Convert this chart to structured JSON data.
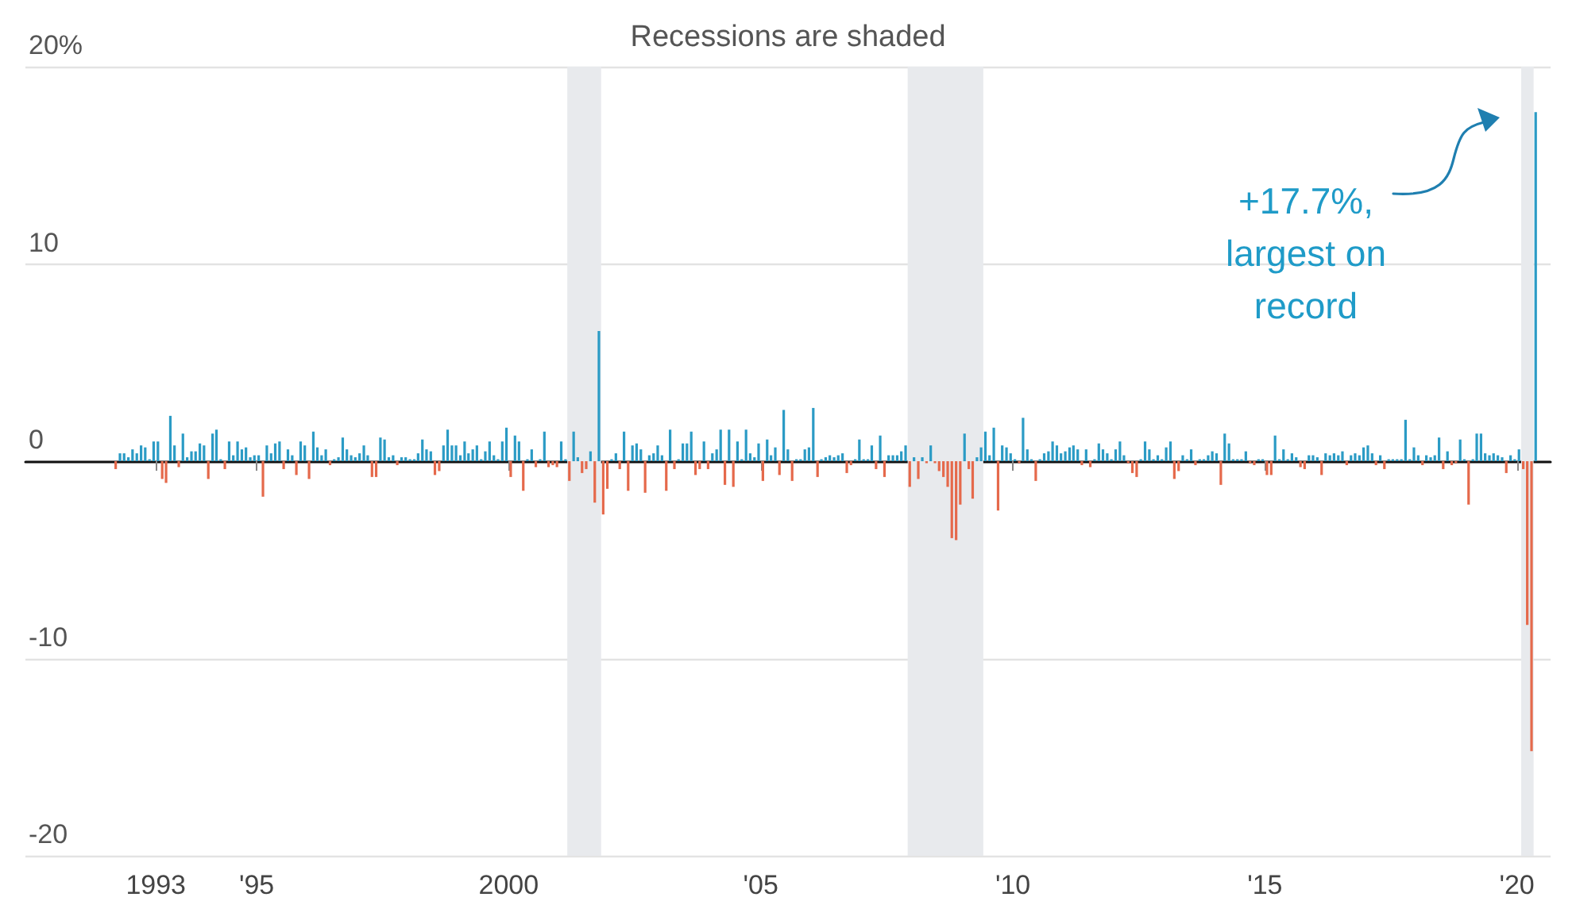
{
  "chart_data": {
    "type": "bar",
    "x": [
      "1992-03",
      "1992-04",
      "1992-05",
      "1992-06",
      "1992-07",
      "1992-08",
      "1992-09",
      "1992-10",
      "1992-11",
      "1992-12",
      "1993-01",
      "1993-02",
      "1993-03",
      "1993-04",
      "1993-05",
      "1993-06",
      "1993-07",
      "1993-08",
      "1993-09",
      "1993-10",
      "1993-11",
      "1993-12",
      "1994-01",
      "1994-02",
      "1994-03",
      "1994-04",
      "1994-05",
      "1994-06",
      "1994-07",
      "1994-08",
      "1994-09",
      "1994-10",
      "1994-11",
      "1994-12",
      "1995-01",
      "1995-02",
      "1995-03",
      "1995-04",
      "1995-05",
      "1995-06",
      "1995-07",
      "1995-08",
      "1995-09",
      "1995-10",
      "1995-11",
      "1995-12",
      "1996-01",
      "1996-02",
      "1996-03",
      "1996-04",
      "1996-05",
      "1996-06",
      "1996-07",
      "1996-08",
      "1996-09",
      "1996-10",
      "1996-11",
      "1996-12",
      "1997-01",
      "1997-02",
      "1997-03",
      "1997-04",
      "1997-05",
      "1997-06",
      "1997-07",
      "1997-08",
      "1997-09",
      "1997-10",
      "1997-11",
      "1997-12",
      "1998-01",
      "1998-02",
      "1998-03",
      "1998-04",
      "1998-05",
      "1998-06",
      "1998-07",
      "1998-08",
      "1998-09",
      "1998-10",
      "1998-11",
      "1998-12",
      "1999-01",
      "1999-02",
      "1999-03",
      "1999-04",
      "1999-05",
      "1999-06",
      "1999-07",
      "1999-08",
      "1999-09",
      "1999-10",
      "1999-11",
      "1999-12",
      "2000-01",
      "2000-02",
      "2000-03",
      "2000-04",
      "2000-05",
      "2000-06",
      "2000-07",
      "2000-08",
      "2000-09",
      "2000-10",
      "2000-11",
      "2000-12",
      "2001-01",
      "2001-02",
      "2001-03",
      "2001-04",
      "2001-05",
      "2001-06",
      "2001-07",
      "2001-08",
      "2001-09",
      "2001-10",
      "2001-11",
      "2001-12",
      "2002-01",
      "2002-02",
      "2002-03",
      "2002-04",
      "2002-05",
      "2002-06",
      "2002-07",
      "2002-08",
      "2002-09",
      "2002-10",
      "2002-11",
      "2002-12",
      "2003-01",
      "2003-02",
      "2003-03",
      "2003-04",
      "2003-05",
      "2003-06",
      "2003-07",
      "2003-08",
      "2003-09",
      "2003-10",
      "2003-11",
      "2003-12",
      "2004-01",
      "2004-02",
      "2004-03",
      "2004-04",
      "2004-05",
      "2004-06",
      "2004-07",
      "2004-08",
      "2004-09",
      "2004-10",
      "2004-11",
      "2004-12",
      "2005-01",
      "2005-02",
      "2005-03",
      "2005-04",
      "2005-05",
      "2005-06",
      "2005-07",
      "2005-08",
      "2005-09",
      "2005-10",
      "2005-11",
      "2005-12",
      "2006-01",
      "2006-02",
      "2006-03",
      "2006-04",
      "2006-05",
      "2006-06",
      "2006-07",
      "2006-08",
      "2006-09",
      "2006-10",
      "2006-11",
      "2006-12",
      "2007-01",
      "2007-02",
      "2007-03",
      "2007-04",
      "2007-05",
      "2007-06",
      "2007-07",
      "2007-08",
      "2007-09",
      "2007-10",
      "2007-11",
      "2007-12",
      "2008-01",
      "2008-02",
      "2008-03",
      "2008-04",
      "2008-05",
      "2008-06",
      "2008-07",
      "2008-08",
      "2008-09",
      "2008-10",
      "2008-11",
      "2008-12",
      "2009-01",
      "2009-02",
      "2009-03",
      "2009-04",
      "2009-05",
      "2009-06",
      "2009-07",
      "2009-08",
      "2009-09",
      "2009-10",
      "2009-11",
      "2009-12",
      "2010-01",
      "2010-02",
      "2010-03",
      "2010-04",
      "2010-05",
      "2010-06",
      "2010-07",
      "2010-08",
      "2010-09",
      "2010-10",
      "2010-11",
      "2010-12",
      "2011-01",
      "2011-02",
      "2011-03",
      "2011-04",
      "2011-05",
      "2011-06",
      "2011-07",
      "2011-08",
      "2011-09",
      "2011-10",
      "2011-11",
      "2011-12",
      "2012-01",
      "2012-02",
      "2012-03",
      "2012-04",
      "2012-05",
      "2012-06",
      "2012-07",
      "2012-08",
      "2012-09",
      "2012-10",
      "2012-11",
      "2012-12",
      "2013-01",
      "2013-02",
      "2013-03",
      "2013-04",
      "2013-05",
      "2013-06",
      "2013-07",
      "2013-08",
      "2013-09",
      "2013-10",
      "2013-11",
      "2013-12",
      "2014-01",
      "2014-02",
      "2014-03",
      "2014-04",
      "2014-05",
      "2014-06",
      "2014-07",
      "2014-08",
      "2014-09",
      "2014-10",
      "2014-11",
      "2014-12",
      "2015-01",
      "2015-02",
      "2015-03",
      "2015-04",
      "2015-05",
      "2015-06",
      "2015-07",
      "2015-08",
      "2015-09",
      "2015-10",
      "2015-11",
      "2015-12",
      "2016-01",
      "2016-02",
      "2016-03",
      "2016-04",
      "2016-05",
      "2016-06",
      "2016-07",
      "2016-08",
      "2016-09",
      "2016-10",
      "2016-11",
      "2016-12",
      "2017-01",
      "2017-02",
      "2017-03",
      "2017-04",
      "2017-05",
      "2017-06",
      "2017-07",
      "2017-08",
      "2017-09",
      "2017-10",
      "2017-11",
      "2017-12",
      "2018-01",
      "2018-02",
      "2018-03",
      "2018-04",
      "2018-05",
      "2018-06",
      "2018-07",
      "2018-08",
      "2018-09",
      "2018-10",
      "2018-11",
      "2018-12",
      "2019-01",
      "2019-02",
      "2019-03",
      "2019-04",
      "2019-05",
      "2019-06",
      "2019-07",
      "2019-08",
      "2019-09",
      "2019-10",
      "2019-11",
      "2019-12",
      "2020-01",
      "2020-02",
      "2020-03",
      "2020-04",
      "2020-05"
    ],
    "values": [
      -0.4,
      0.4,
      0.4,
      0.2,
      0.6,
      0.4,
      0.8,
      0.7,
      0.1,
      1.0,
      1.0,
      -0.9,
      -1.1,
      2.3,
      0.8,
      -0.3,
      1.4,
      0.2,
      0.5,
      0.5,
      0.9,
      0.8,
      -0.9,
      1.4,
      1.6,
      0.1,
      -0.4,
      1.0,
      0.3,
      1.0,
      0.6,
      0.7,
      0.2,
      0.3,
      0.3,
      -1.8,
      0.8,
      0.4,
      0.9,
      1.0,
      -0.4,
      0.6,
      0.3,
      -0.7,
      1.0,
      0.8,
      -0.9,
      1.5,
      0.7,
      0.3,
      0.6,
      -0.2,
      0.1,
      0.2,
      1.2,
      0.6,
      0.3,
      0.2,
      0.4,
      0.8,
      0.3,
      -0.8,
      -0.8,
      1.2,
      1.1,
      0.2,
      0.3,
      -0.2,
      0.2,
      0.2,
      0.1,
      0.1,
      0.4,
      1.1,
      0.6,
      0.5,
      -0.7,
      -0.5,
      0.8,
      1.6,
      0.8,
      0.8,
      0.3,
      1.0,
      0.4,
      0.6,
      0.8,
      0.1,
      0.5,
      1.0,
      0.3,
      0.1,
      1.0,
      1.7,
      -0.8,
      1.3,
      1.0,
      -1.5,
      0.1,
      0.6,
      -0.3,
      0.1,
      1.5,
      -0.3,
      -0.2,
      -0.3,
      1.0,
      0.1,
      -1.0,
      1.5,
      0.2,
      -0.6,
      -0.4,
      0.5,
      -2.1,
      6.6,
      -2.7,
      -1.4,
      0.1,
      0.4,
      -0.4,
      1.5,
      -1.5,
      0.8,
      0.9,
      0.6,
      -1.6,
      0.3,
      0.4,
      0.8,
      0.3,
      -1.5,
      1.6,
      -0.4,
      0.1,
      0.9,
      0.9,
      1.5,
      -0.7,
      -0.4,
      1.0,
      -0.4,
      0.4,
      0.6,
      1.6,
      -1.2,
      1.6,
      -1.3,
      1.0,
      0.1,
      1.6,
      0.4,
      0.2,
      0.9,
      -1.0,
      1.1,
      0.3,
      0.7,
      -0.7,
      2.6,
      0.6,
      -1.0,
      0.1,
      0.1,
      0.6,
      0.7,
      2.7,
      -0.8,
      0.1,
      0.2,
      0.3,
      0.2,
      0.3,
      0.4,
      -0.6,
      -0.2,
      0.1,
      1.1,
      0.1,
      0.1,
      0.8,
      -0.4,
      1.3,
      -0.8,
      0.3,
      0.3,
      0.3,
      0.5,
      0.8,
      -1.3,
      0.2,
      -0.9,
      0.2,
      -0.1,
      0.8,
      -0.1,
      -0.5,
      -0.8,
      -1.3,
      -3.9,
      -4.0,
      -2.2,
      1.4,
      -0.4,
      -1.9,
      0.2,
      0.7,
      1.5,
      0.3,
      1.7,
      -2.5,
      0.8,
      0.7,
      0.4,
      0.1,
      -0.1,
      2.2,
      0.6,
      0.1,
      -1.0,
      0.1,
      0.4,
      0.5,
      1.0,
      0.8,
      0.4,
      0.5,
      0.7,
      0.8,
      0.6,
      -0.2,
      0.6,
      -0.3,
      0.1,
      0.9,
      0.6,
      0.4,
      0.1,
      0.6,
      1.0,
      0.3,
      -0.1,
      -0.6,
      -0.8,
      0.1,
      1.0,
      0.6,
      0.1,
      0.3,
      0.1,
      0.7,
      1.0,
      -0.9,
      -0.5,
      0.3,
      0.1,
      0.6,
      -0.2,
      0.1,
      0.1,
      0.3,
      0.5,
      0.4,
      -1.2,
      1.4,
      0.9,
      0.1,
      0.1,
      0.1,
      0.5,
      -0.1,
      -0.2,
      0.1,
      0.1,
      -0.7,
      -0.7,
      1.3,
      0.1,
      0.6,
      0.1,
      0.4,
      0.2,
      -0.3,
      -0.4,
      0.3,
      0.3,
      0.2,
      -0.7,
      0.4,
      0.3,
      0.4,
      0.3,
      0.5,
      -0.2,
      0.3,
      0.4,
      0.3,
      0.7,
      0.8,
      0.4,
      -0.2,
      0.3,
      -0.4,
      0.1,
      0.1,
      0.1,
      0.1,
      2.1,
      0.1,
      0.7,
      0.3,
      -0.2,
      0.3,
      0.2,
      0.3,
      1.2,
      -0.4,
      0.5,
      -0.2,
      -0.1,
      1.1,
      0.1,
      -2.2,
      0.1,
      1.4,
      1.4,
      0.4,
      0.3,
      0.4,
      0.3,
      0.2,
      -0.6,
      0.3,
      0.1,
      0.6,
      -0.4,
      -8.3,
      -14.7,
      17.7
    ],
    "colors": [
      "#e5694b",
      "#2b9bc5",
      "#2b9bc5",
      "#2b9bc5",
      "#2b9bc5",
      "#2b9bc5",
      "#2b9bc5",
      "#2b9bc5",
      "#2b9bc5",
      "#2b9bc5",
      "#2b9bc5",
      "#e5694b",
      "#e5694b",
      "#2b9bc5",
      "#2b9bc5",
      "#e5694b",
      "#2b9bc5",
      "#2b9bc5",
      "#2b9bc5",
      "#2b9bc5",
      "#2b9bc5",
      "#2b9bc5",
      "#e5694b",
      "#2b9bc5",
      "#2b9bc5",
      "#2b9bc5",
      "#e5694b",
      "#2b9bc5",
      "#2b9bc5",
      "#2b9bc5",
      "#2b9bc5",
      "#2b9bc5",
      "#2b9bc5",
      "#2b9bc5",
      "#2b9bc5",
      "#e5694b",
      "#2b9bc5",
      "#2b9bc5",
      "#2b9bc5",
      "#2b9bc5",
      "#e5694b",
      "#2b9bc5",
      "#2b9bc5",
      "#e5694b",
      "#2b9bc5",
      "#2b9bc5",
      "#e5694b",
      "#2b9bc5",
      "#2b9bc5",
      "#2b9bc5",
      "#2b9bc5",
      "#e5694b",
      "#2b9bc5",
      "#2b9bc5",
      "#2b9bc5",
      "#2b9bc5",
      "#2b9bc5",
      "#2b9bc5",
      "#2b9bc5",
      "#2b9bc5",
      "#2b9bc5",
      "#e5694b",
      "#e5694b",
      "#2b9bc5",
      "#2b9bc5",
      "#2b9bc5",
      "#2b9bc5",
      "#e5694b",
      "#2b9bc5",
      "#2b9bc5",
      "#2b9bc5",
      "#2b9bc5",
      "#2b9bc5",
      "#2b9bc5",
      "#2b9bc5",
      "#2b9bc5",
      "#e5694b",
      "#e5694b",
      "#2b9bc5",
      "#2b9bc5",
      "#2b9bc5",
      "#2b9bc5",
      "#2b9bc5",
      "#2b9bc5",
      "#2b9bc5",
      "#2b9bc5",
      "#2b9bc5",
      "#2b9bc5",
      "#2b9bc5",
      "#2b9bc5",
      "#2b9bc5",
      "#2b9bc5",
      "#2b9bc5",
      "#2b9bc5",
      "#e5694b",
      "#2b9bc5",
      "#2b9bc5",
      "#e5694b",
      "#2b9bc5",
      "#2b9bc5",
      "#e5694b",
      "#2b9bc5",
      "#2b9bc5",
      "#e5694b",
      "#e5694b",
      "#e5694b",
      "#2b9bc5",
      "#2b9bc5",
      "#e5694b",
      "#2b9bc5",
      "#2b9bc5",
      "#e5694b",
      "#e5694b",
      "#2b9bc5",
      "#e5694b",
      "#2b9bc5",
      "#e5694b",
      "#e5694b",
      "#2b9bc5",
      "#2b9bc5",
      "#e5694b",
      "#2b9bc5",
      "#e5694b",
      "#2b9bc5",
      "#2b9bc5",
      "#2b9bc5",
      "#e5694b",
      "#2b9bc5",
      "#2b9bc5",
      "#2b9bc5",
      "#2b9bc5",
      "#e5694b",
      "#2b9bc5",
      "#e5694b",
      "#2b9bc5",
      "#2b9bc5",
      "#2b9bc5",
      "#2b9bc5",
      "#e5694b",
      "#e5694b",
      "#2b9bc5",
      "#e5694b",
      "#2b9bc5",
      "#2b9bc5",
      "#2b9bc5",
      "#e5694b",
      "#2b9bc5",
      "#e5694b",
      "#2b9bc5",
      "#2b9bc5",
      "#2b9bc5",
      "#2b9bc5",
      "#2b9bc5",
      "#2b9bc5",
      "#e5694b",
      "#2b9bc5",
      "#2b9bc5",
      "#2b9bc5",
      "#e5694b",
      "#2b9bc5",
      "#2b9bc5",
      "#e5694b",
      "#2b9bc5",
      "#2b9bc5",
      "#2b9bc5",
      "#2b9bc5",
      "#2b9bc5",
      "#e5694b",
      "#2b9bc5",
      "#2b9bc5",
      "#2b9bc5",
      "#2b9bc5",
      "#2b9bc5",
      "#2b9bc5",
      "#e5694b",
      "#e5694b",
      "#2b9bc5",
      "#2b9bc5",
      "#2b9bc5",
      "#2b9bc5",
      "#2b9bc5",
      "#e5694b",
      "#2b9bc5",
      "#e5694b",
      "#2b9bc5",
      "#2b9bc5",
      "#2b9bc5",
      "#2b9bc5",
      "#2b9bc5",
      "#e5694b",
      "#2b9bc5",
      "#e5694b",
      "#2b9bc5",
      "#e5694b",
      "#2b9bc5",
      "#e5694b",
      "#e5694b",
      "#e5694b",
      "#e5694b",
      "#e5694b",
      "#e5694b",
      "#e5694b",
      "#2b9bc5",
      "#e5694b",
      "#e5694b",
      "#2b9bc5",
      "#2b9bc5",
      "#2b9bc5",
      "#2b9bc5",
      "#2b9bc5",
      "#e5694b",
      "#2b9bc5",
      "#2b9bc5",
      "#2b9bc5",
      "#2b9bc5",
      "#e5694b",
      "#2b9bc5",
      "#2b9bc5",
      "#2b9bc5",
      "#e5694b",
      "#2b9bc5",
      "#2b9bc5",
      "#2b9bc5",
      "#2b9bc5",
      "#2b9bc5",
      "#2b9bc5",
      "#2b9bc5",
      "#2b9bc5",
      "#2b9bc5",
      "#2b9bc5",
      "#e5694b",
      "#2b9bc5",
      "#e5694b",
      "#2b9bc5",
      "#2b9bc5",
      "#2b9bc5",
      "#2b9bc5",
      "#2b9bc5",
      "#2b9bc5",
      "#2b9bc5",
      "#2b9bc5",
      "#e5694b",
      "#e5694b",
      "#e5694b",
      "#2b9bc5",
      "#2b9bc5",
      "#2b9bc5",
      "#2b9bc5",
      "#2b9bc5",
      "#2b9bc5",
      "#2b9bc5",
      "#2b9bc5",
      "#e5694b",
      "#e5694b",
      "#2b9bc5",
      "#2b9bc5",
      "#2b9bc5",
      "#e5694b",
      "#2b9bc5",
      "#2b9bc5",
      "#2b9bc5",
      "#2b9bc5",
      "#2b9bc5",
      "#e5694b",
      "#2b9bc5",
      "#2b9bc5",
      "#2b9bc5",
      "#2b9bc5",
      "#2b9bc5",
      "#2b9bc5",
      "#e5694b",
      "#e5694b",
      "#2b9bc5",
      "#2b9bc5",
      "#e5694b",
      "#e5694b",
      "#2b9bc5",
      "#2b9bc5",
      "#2b9bc5",
      "#2b9bc5",
      "#2b9bc5",
      "#2b9bc5",
      "#e5694b",
      "#e5694b",
      "#2b9bc5",
      "#2b9bc5",
      "#2b9bc5",
      "#e5694b",
      "#2b9bc5",
      "#2b9bc5",
      "#2b9bc5",
      "#2b9bc5",
      "#2b9bc5",
      "#e5694b",
      "#2b9bc5",
      "#2b9bc5",
      "#2b9bc5",
      "#2b9bc5",
      "#2b9bc5",
      "#2b9bc5",
      "#e5694b",
      "#2b9bc5",
      "#e5694b",
      "#2b9bc5",
      "#2b9bc5",
      "#2b9bc5",
      "#2b9bc5",
      "#2b9bc5",
      "#2b9bc5",
      "#2b9bc5",
      "#2b9bc5",
      "#e5694b",
      "#2b9bc5",
      "#2b9bc5",
      "#2b9bc5",
      "#2b9bc5",
      "#e5694b",
      "#2b9bc5",
      "#e5694b",
      "#e5694b",
      "#2b9bc5",
      "#2b9bc5",
      "#e5694b",
      "#2b9bc5",
      "#2b9bc5",
      "#2b9bc5",
      "#2b9bc5",
      "#2b9bc5",
      "#2b9bc5",
      "#2b9bc5",
      "#2b9bc5",
      "#e5694b",
      "#2b9bc5",
      "#2b9bc5",
      "#2b9bc5",
      "#e5694b",
      "#e5694b",
      "#e5694b",
      "#2b9bc5"
    ],
    "xlim": [
      "1990-06",
      "2020-09"
    ],
    "xticks": [
      {
        "value": "1993-01",
        "label": "1993"
      },
      {
        "value": "1995-01",
        "label": "'95"
      },
      {
        "value": "2000-01",
        "label": "2000"
      },
      {
        "value": "2005-01",
        "label": "'05"
      },
      {
        "value": "2010-01",
        "label": "'10"
      },
      {
        "value": "2015-01",
        "label": "'15"
      },
      {
        "value": "2020-01",
        "label": "'20"
      }
    ],
    "ylim": [
      -20,
      20
    ],
    "yticks": [
      {
        "value": 20,
        "label": "20%"
      },
      10,
      0,
      -10,
      -20
    ],
    "grid": "y",
    "bands": [
      {
        "axis": "x",
        "from": "2001-03",
        "to": "2001-11",
        "color": "#e8eaed"
      },
      {
        "axis": "x",
        "from": "2007-12",
        "to": "2009-06",
        "color": "#e8eaed"
      },
      {
        "axis": "x",
        "from": "2020-02",
        "to": "2020-05",
        "color": "#e8eaed"
      }
    ],
    "annotations": [
      "Recessions are shaded",
      "+17.7%,\nlargest on\nrecord"
    ]
  }
}
